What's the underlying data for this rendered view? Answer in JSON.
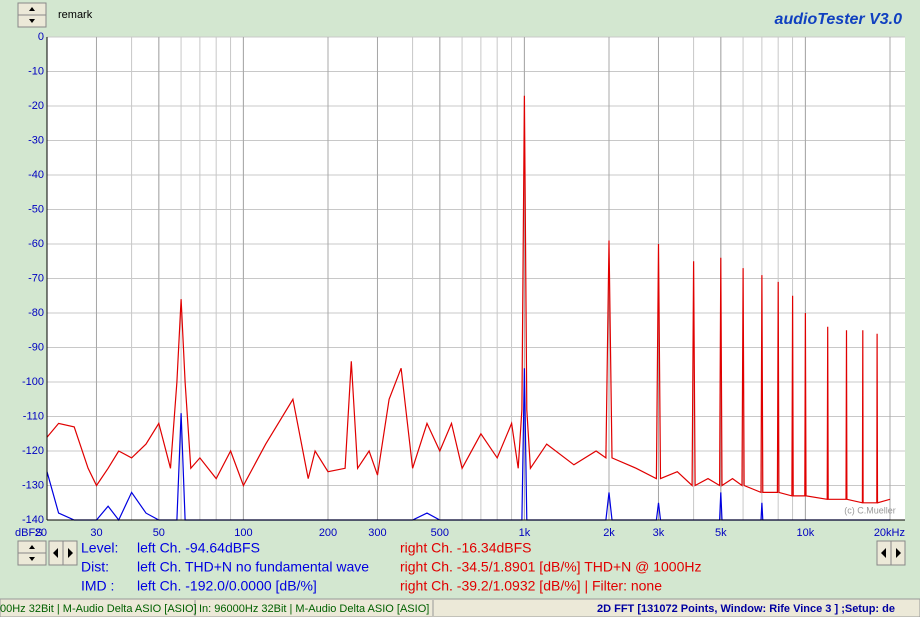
{
  "ui": {
    "remark": "remark",
    "app_title": "audioTester  V3.0",
    "info": {
      "level_label": "Level:",
      "level_left": "left Ch. -94.64dBFS",
      "level_right": "right Ch. -16.34dBFS",
      "dist_label": "Dist:",
      "dist_left": "left Ch. THD+N  no fundamental wave",
      "dist_right": "right Ch. -34.5/1.8901 [dB/%] THD+N  @ 1000Hz",
      "imd_label": "IMD  :",
      "imd_left": "left Ch. -192.0/0.0000 [dB/%]",
      "imd_right": "right Ch. -39.2/1.0932 [dB/%] |   Filter: none"
    },
    "status": {
      "out": "00Hz 32Bit  | M-Audio Delta ASIO [ASIO]",
      "in": "In: 96000Hz 32Bit  | M-Audio Delta ASIO [ASIO]",
      "mode": "2D FFT [131072 Points, Window: Rife Vince 3 ] ;Setup:  de"
    }
  },
  "chart_data": {
    "type": "line",
    "y_label": "dBFS",
    "watermark": "(c) C.Mueller",
    "x_log": true,
    "grid": true,
    "minor_grid": true,
    "xlim": [
      20,
      20000
    ],
    "ylim": [
      -140,
      0
    ],
    "xticks": [
      20,
      30,
      50,
      100,
      200,
      300,
      500,
      {
        "value": 1000,
        "label": "1k"
      },
      {
        "value": 2000,
        "label": "2k"
      },
      {
        "value": 3000,
        "label": "3k"
      },
      {
        "value": 5000,
        "label": "5k"
      },
      {
        "value": 10000,
        "label": "10k"
      },
      {
        "value": 20000,
        "label": "20kHz"
      }
    ],
    "yticks": [
      0,
      -10,
      -20,
      -30,
      -40,
      -50,
      -60,
      -70,
      -80,
      -90,
      -100,
      -110,
      -120,
      -130,
      -140
    ],
    "x": [
      20,
      22,
      25,
      28,
      30,
      33,
      36,
      40,
      45,
      50,
      55,
      58,
      60,
      62,
      65,
      70,
      80,
      90,
      100,
      120,
      150,
      170,
      180,
      200,
      230,
      242,
      255,
      280,
      300,
      330,
      364,
      400,
      450,
      500,
      550,
      600,
      700,
      800,
      900,
      950,
      980,
      1000,
      1020,
      1050,
      1200,
      1500,
      1800,
      1950,
      2000,
      2050,
      2500,
      2950,
      3000,
      3050,
      3500,
      3950,
      4000,
      4050,
      4500,
      4950,
      5000,
      5050,
      5500,
      5950,
      6000,
      6050,
      6950,
      7000,
      7050,
      7950,
      8000,
      8050,
      8950,
      9000,
      9050,
      9950,
      10000,
      10050,
      11950,
      12000,
      12050,
      13950,
      14000,
      14050,
      15950,
      16000,
      16050,
      17950,
      18000,
      18050,
      20000
    ],
    "series": [
      {
        "name": "right Ch.",
        "color": "#e00000",
        "values": [
          -116,
          -112,
          -113,
          -125,
          -130,
          -125,
          -120,
          -122,
          -118,
          -112,
          -125,
          -100,
          -76,
          -100,
          -125,
          -122,
          -128,
          -120,
          -130,
          -118,
          -105,
          -128,
          -120,
          -126,
          -125,
          -94,
          -125,
          -120,
          -127,
          -105,
          -96,
          -125,
          -112,
          -120,
          -112,
          -125,
          -115,
          -122,
          -112,
          -125,
          -108,
          -17,
          -108,
          -125,
          -118,
          -124,
          -120,
          -122,
          -59,
          -122,
          -125,
          -128,
          -60,
          -128,
          -126,
          -130,
          -65,
          -130,
          -128,
          -130,
          -64,
          -130,
          -128,
          -130,
          -67,
          -130,
          -132,
          -69,
          -132,
          -132,
          -71,
          -132,
          -133,
          -75,
          -133,
          -133,
          -80,
          -133,
          -134,
          -84,
          -134,
          -134,
          -85,
          -134,
          -135,
          -85,
          -135,
          -135,
          -86,
          -135,
          -134
        ]
      },
      {
        "name": "left Ch.",
        "color": "#0000e0",
        "values": [
          -126,
          -138,
          -140,
          -140,
          -140,
          -136,
          -140,
          -132,
          -138,
          -140,
          -140,
          -140,
          -109,
          -140,
          -140,
          -140,
          -140,
          -140,
          -140,
          -140,
          -140,
          -140,
          -140,
          -140,
          -140,
          -140,
          -140,
          -140,
          -140,
          -140,
          -140,
          -140,
          -138,
          -140,
          -140,
          -140,
          -140,
          -140,
          -140,
          -140,
          -140,
          -96,
          -140,
          -140,
          -140,
          -140,
          -140,
          -140,
          -132,
          -140,
          -140,
          -140,
          -135,
          -140,
          -140,
          -140,
          -140,
          -140,
          -140,
          -140,
          -132,
          -140,
          -140,
          -140,
          -140,
          -140,
          -140,
          -135,
          -140,
          -140,
          -140,
          -140,
          -140,
          -140,
          -140,
          -140,
          -140,
          -140,
          -140,
          -140,
          -140,
          -140,
          -140,
          -140,
          -140,
          -140,
          -140,
          -140,
          -140,
          -140,
          -140
        ]
      }
    ]
  }
}
